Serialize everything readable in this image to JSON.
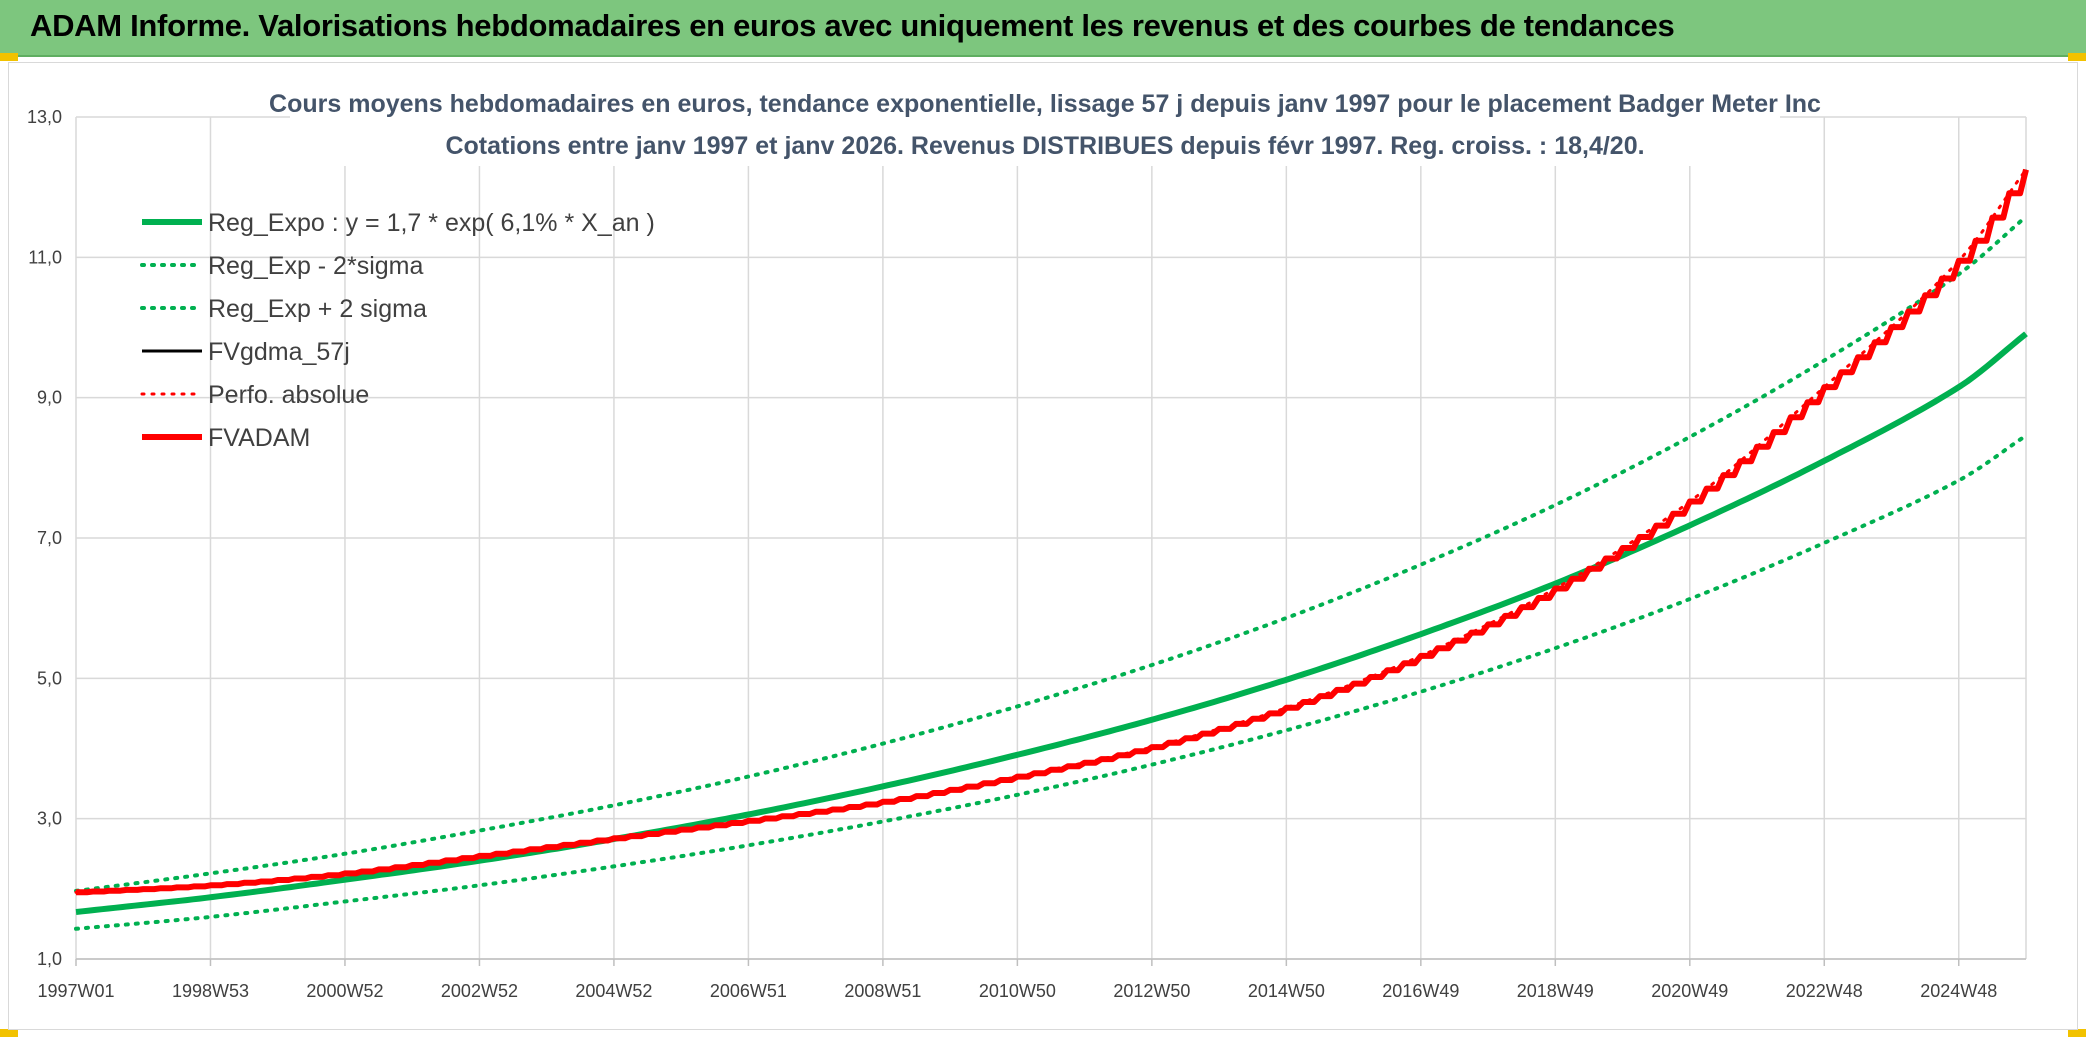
{
  "header": {
    "title": "ADAM Informe. Valorisations hebdomadaires en euros avec uniquement les revenus et des courbes de tendances"
  },
  "colors": {
    "header_bg": "#7dc67e",
    "reg_expo": "#00b050",
    "fvgdma": "#000000",
    "fvadam": "#ff0000",
    "grid": "#d9d9d9"
  },
  "chart_data": {
    "type": "line",
    "title_line1": "Cours moyens hebdomadaires en euros, tendance exponentielle, lissage 57 j depuis janv 1997 pour le placement Badger Meter Inc",
    "title_line2": "Cotations entre janv 1997 et janv 2026. Revenus DISTRIBUES depuis févr 1997. Reg. croiss. : 18,4/20.",
    "xlabel": "",
    "ylabel": "",
    "ylim": [
      1.0,
      13.0
    ],
    "yticks": [
      "1,0",
      "3,0",
      "5,0",
      "7,0",
      "9,0",
      "11,0",
      "13,0"
    ],
    "yticks_values": [
      1,
      3,
      5,
      7,
      9,
      11,
      13
    ],
    "xlim": [
      1997.0,
      2026.0
    ],
    "xticks": [
      "1997W01",
      "1998W53",
      "2000W52",
      "2002W52",
      "2004W52",
      "2006W51",
      "2008W51",
      "2010W50",
      "2012W50",
      "2014W50",
      "2016W49",
      "2018W49",
      "2020W49",
      "2022W48",
      "2024W48"
    ],
    "xticks_values": [
      1997.0,
      1999.0,
      2001.0,
      2003.0,
      2005.0,
      2007.0,
      2009.0,
      2011.0,
      2013.0,
      2015.0,
      2017.0,
      2019.0,
      2021.0,
      2023.0,
      2025.0
    ],
    "grid": true,
    "legend_position": "top-left",
    "legend": [
      {
        "name": "Reg_Expo : y = 1,7 * exp( 6,1% *  X_an )",
        "color": "#00b050",
        "style": "solid",
        "width": 6
      },
      {
        "name": "Reg_Exp - 2*sigma",
        "color": "#00b050",
        "style": "dotted",
        "width": 4
      },
      {
        "name": "Reg_Exp + 2 sigma",
        "color": "#00b050",
        "style": "dotted",
        "width": 4
      },
      {
        "name": "FVgdma_57j",
        "color": "#000000",
        "style": "solid",
        "width": 3
      },
      {
        "name": "Perfo. absolue",
        "color": "#ff0000",
        "style": "dotted",
        "width": 3
      },
      {
        "name": "FVADAM",
        "color": "#ff0000",
        "style": "solid",
        "width": 6
      }
    ],
    "series": [
      {
        "name": "Reg_Expo : y = 1,7 * exp( 6,1% *  X_an )",
        "color": "#00b050",
        "style": "solid",
        "x": [
          1997,
          1999,
          2001,
          2003,
          2005,
          2007,
          2009,
          2011,
          2013,
          2015,
          2017,
          2019,
          2021,
          2023,
          2025,
          2026
        ],
        "y": [
          1.67,
          1.88,
          2.13,
          2.4,
          2.71,
          3.06,
          3.46,
          3.91,
          4.41,
          4.98,
          5.63,
          6.35,
          7.18,
          8.1,
          9.15,
          9.91
        ]
      },
      {
        "name": "Reg_Exp - 2*sigma",
        "color": "#00b050",
        "style": "dotted",
        "x": [
          1997,
          1999,
          2001,
          2003,
          2005,
          2007,
          2009,
          2011,
          2013,
          2015,
          2017,
          2019,
          2021,
          2023,
          2025,
          2026
        ],
        "y": [
          1.43,
          1.6,
          1.82,
          2.05,
          2.32,
          2.62,
          2.96,
          3.34,
          3.77,
          4.26,
          4.81,
          5.43,
          6.13,
          6.93,
          7.82,
          8.46
        ]
      },
      {
        "name": "Reg_Exp + 2 sigma",
        "color": "#00b050",
        "style": "dotted",
        "x": [
          1997,
          1999,
          2001,
          2003,
          2005,
          2007,
          2009,
          2011,
          2013,
          2015,
          2017,
          2019,
          2021,
          2023,
          2025,
          2026
        ],
        "y": [
          1.97,
          2.22,
          2.5,
          2.83,
          3.19,
          3.6,
          4.07,
          4.6,
          5.19,
          5.86,
          6.62,
          7.47,
          8.44,
          9.53,
          10.76,
          11.58
        ]
      },
      {
        "name": "FVgdma_57j",
        "color": "#000000",
        "style": "solid",
        "x": [
          1997,
          1999,
          2001,
          2003,
          2005,
          2007,
          2009,
          2011,
          2013,
          2015,
          2017,
          2019,
          2021,
          2023,
          2025,
          2026
        ],
        "y": [
          1.95,
          2.05,
          2.22,
          2.47,
          2.72,
          2.97,
          3.24,
          3.6,
          4.02,
          4.58,
          5.32,
          6.28,
          7.52,
          9.15,
          10.95,
          12.25
        ]
      },
      {
        "name": "Perfo. absolue",
        "color": "#ff0000",
        "style": "dotted",
        "x": [
          1997,
          1999,
          2001,
          2003,
          2005,
          2007,
          2009,
          2011,
          2013,
          2015,
          2017,
          2019,
          2021,
          2023,
          2025,
          2026
        ],
        "y": [
          1.95,
          2.05,
          2.22,
          2.47,
          2.72,
          2.97,
          3.24,
          3.6,
          4.02,
          4.58,
          5.32,
          6.28,
          7.52,
          9.15,
          10.95,
          12.25
        ]
      },
      {
        "name": "FVADAM",
        "color": "#ff0000",
        "style": "solid",
        "x": [
          1997,
          1999,
          2001,
          2003,
          2005,
          2007,
          2009,
          2011,
          2013,
          2015,
          2017,
          2019,
          2021,
          2023,
          2025,
          2026
        ],
        "y": [
          1.95,
          2.05,
          2.22,
          2.47,
          2.72,
          2.97,
          3.24,
          3.6,
          4.02,
          4.58,
          5.32,
          6.28,
          7.52,
          9.15,
          10.95,
          12.25
        ]
      }
    ]
  }
}
